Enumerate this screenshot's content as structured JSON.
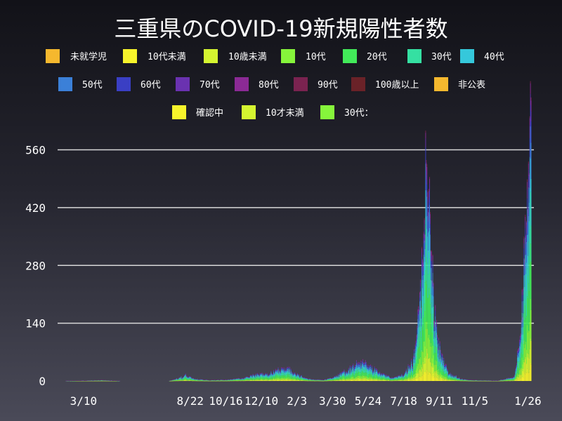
{
  "chart_data": {
    "type": "bar",
    "stacked": true,
    "title": "三重県のCOVID-19新規陽性者数",
    "xlabel": "",
    "ylabel": "",
    "ylim": [
      0,
      600
    ],
    "y_ticks": [
      0,
      140,
      280,
      420,
      560
    ],
    "x_tick_labels": [
      "3/10",
      "8/22",
      "10/16",
      "12/10",
      "2/3",
      "3/30",
      "5/24",
      "7/18",
      "9/11",
      "11/5",
      "1/26"
    ],
    "grid": true,
    "legend_position": "top",
    "colors": {
      "background_top": "#121218",
      "background_bottom": "#4a4a58",
      "grid": "#d8d8d8",
      "text": "#ffffff"
    },
    "legend": [
      {
        "name": "未就学児",
        "color": "#f5b82e"
      },
      {
        "name": "10代未満",
        "color": "#f7f42b"
      },
      {
        "name": "10歳未満",
        "color": "#d5f530"
      },
      {
        "name": "10代",
        "color": "#86f53b"
      },
      {
        "name": "20代",
        "color": "#42ea59"
      },
      {
        "name": "30代",
        "color": "#35e0a2"
      },
      {
        "name": "40代",
        "color": "#35c8db"
      },
      {
        "name": "50代",
        "color": "#3b80d8"
      },
      {
        "name": "60代",
        "color": "#3a3fc4"
      },
      {
        "name": "70代",
        "color": "#6a32b0"
      },
      {
        "name": "80代",
        "color": "#8b2a95"
      },
      {
        "name": "90代",
        "color": "#7a2350"
      },
      {
        "name": "100歳以上",
        "color": "#6a2228"
      },
      {
        "name": "非公表",
        "color": "#f5b82e"
      },
      {
        "name": "確認中",
        "color": "#f7f42b"
      },
      {
        "name": "10才未満",
        "color": "#d5f530"
      },
      {
        "name": "30代：",
        "color": "#86f53b"
      }
    ],
    "series_profile": {
      "x_start": "2020-01-30",
      "x_end": "2022-01-31",
      "daily_total_keypoints": [
        [
          "2020-01-30",
          0
        ],
        [
          "2020-03-10",
          1
        ],
        [
          "2020-04-10",
          2
        ],
        [
          "2020-05-10",
          0
        ],
        [
          "2020-07-20",
          0
        ],
        [
          "2020-08-05",
          8
        ],
        [
          "2020-08-15",
          14
        ],
        [
          "2020-08-30",
          5
        ],
        [
          "2020-09-20",
          2
        ],
        [
          "2020-10-16",
          3
        ],
        [
          "2020-11-15",
          8
        ],
        [
          "2020-12-01",
          15
        ],
        [
          "2020-12-20",
          18
        ],
        [
          "2021-01-10",
          30
        ],
        [
          "2021-01-20",
          35
        ],
        [
          "2021-02-03",
          15
        ],
        [
          "2021-02-20",
          5
        ],
        [
          "2021-03-15",
          3
        ],
        [
          "2021-03-30",
          8
        ],
        [
          "2021-04-20",
          25
        ],
        [
          "2021-05-10",
          45
        ],
        [
          "2021-05-24",
          40
        ],
        [
          "2021-06-10",
          22
        ],
        [
          "2021-06-30",
          8
        ],
        [
          "2021-07-18",
          15
        ],
        [
          "2021-08-01",
          50
        ],
        [
          "2021-08-10",
          150
        ],
        [
          "2021-08-15",
          280
        ],
        [
          "2021-08-20",
          420
        ],
        [
          "2021-08-22",
          510
        ],
        [
          "2021-08-26",
          400
        ],
        [
          "2021-09-01",
          250
        ],
        [
          "2021-09-11",
          80
        ],
        [
          "2021-09-25",
          20
        ],
        [
          "2021-10-15",
          5
        ],
        [
          "2021-11-05",
          2
        ],
        [
          "2021-12-10",
          1
        ],
        [
          "2022-01-05",
          10
        ],
        [
          "2022-01-12",
          80
        ],
        [
          "2022-01-18",
          200
        ],
        [
          "2022-01-22",
          380
        ],
        [
          "2022-01-26",
          450
        ],
        [
          "2022-01-29",
          595
        ],
        [
          "2022-01-31",
          560
        ]
      ]
    }
  }
}
